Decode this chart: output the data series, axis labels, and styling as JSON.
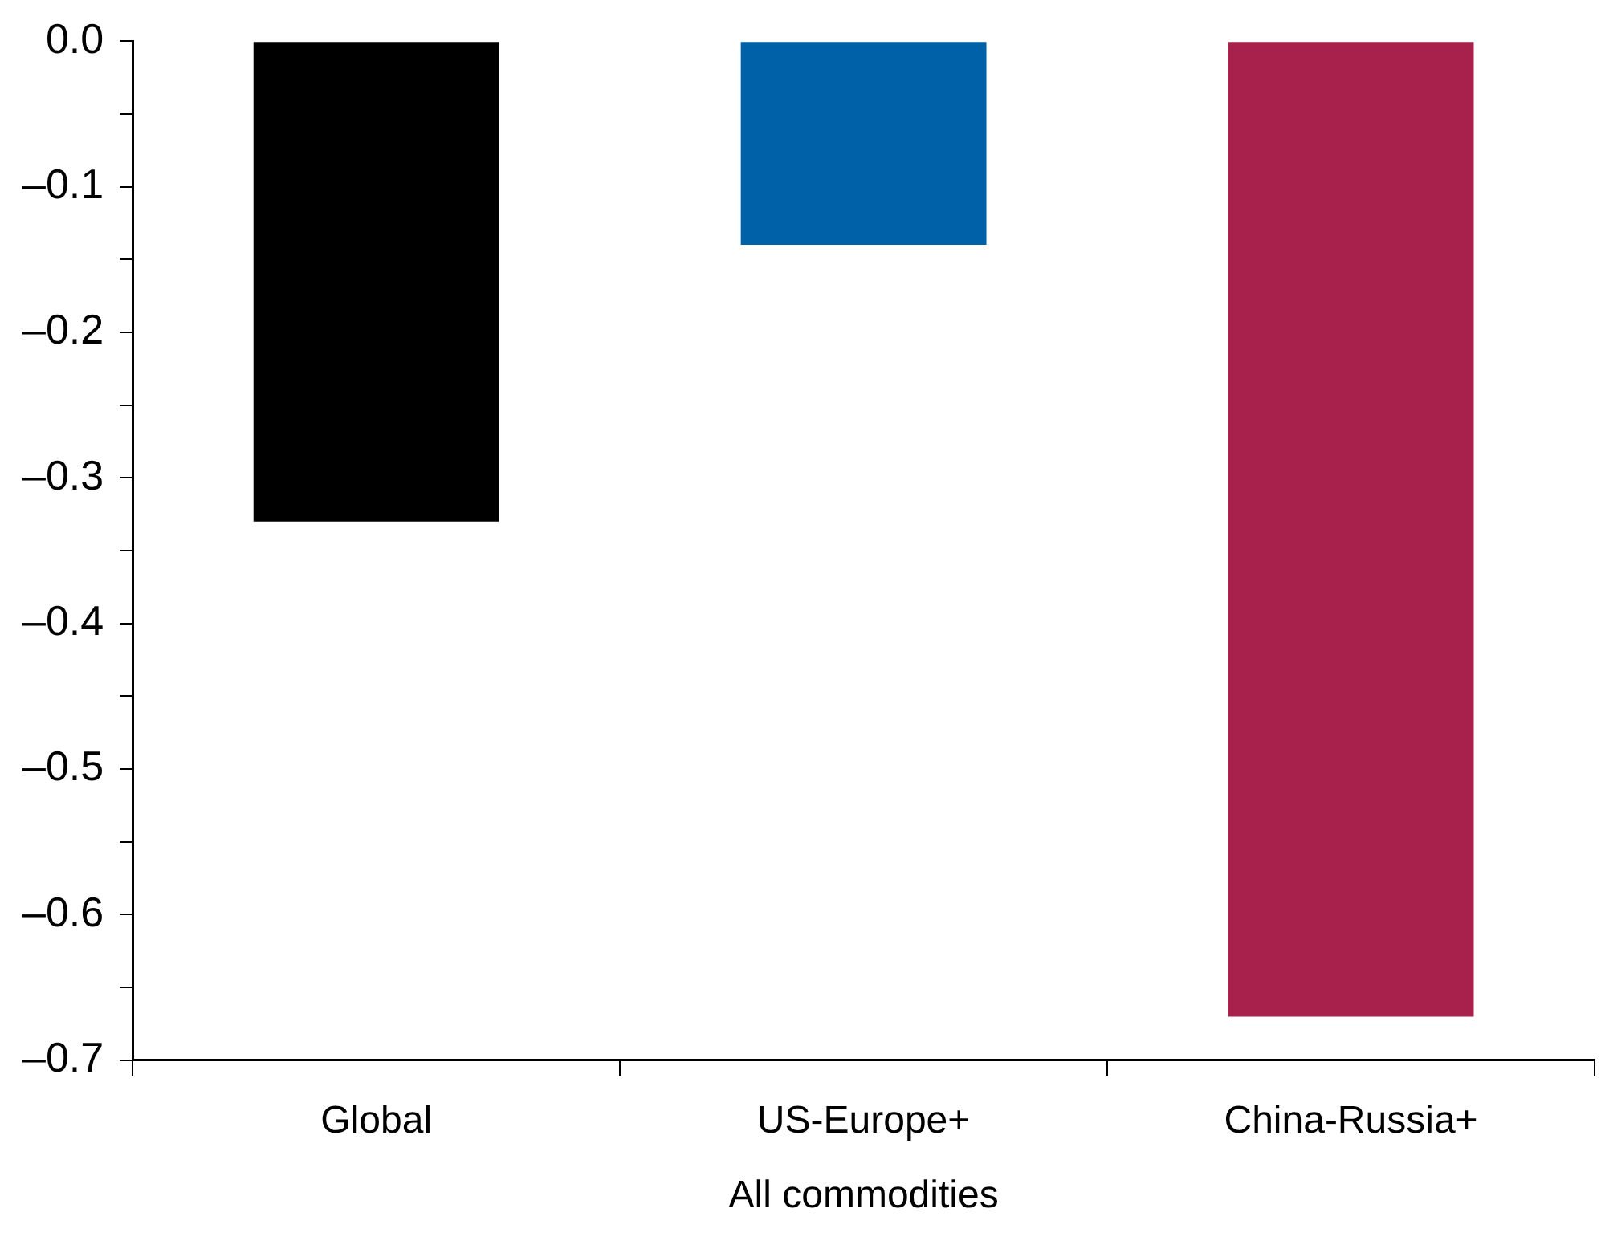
{
  "chart_data": {
    "type": "bar",
    "xlabel": "All commodities",
    "categories": [
      "Global",
      "US-Europe+",
      "China-Russia+"
    ],
    "values": [
      -0.33,
      -0.14,
      -0.67
    ],
    "colors": [
      "#000000",
      "#0060a8",
      "#a8204c"
    ],
    "ylim": [
      -0.7,
      0
    ],
    "yticks": [
      {
        "value": 0,
        "label": "0.0"
      },
      {
        "value": -0.05,
        "label": null
      },
      {
        "value": -0.1,
        "label": "–0.1"
      },
      {
        "value": -0.15,
        "label": null
      },
      {
        "value": -0.2,
        "label": "–0.2"
      },
      {
        "value": -0.25,
        "label": null
      },
      {
        "value": -0.3,
        "label": "–0.3"
      },
      {
        "value": -0.35,
        "label": null
      },
      {
        "value": -0.4,
        "label": "–0.4"
      },
      {
        "value": -0.45,
        "label": null
      },
      {
        "value": -0.5,
        "label": "–0.5"
      },
      {
        "value": -0.55,
        "label": null
      },
      {
        "value": -0.6,
        "label": "–0.6"
      },
      {
        "value": -0.65,
        "label": null
      },
      {
        "value": -0.7,
        "label": "–0.7"
      }
    ],
    "grid": false,
    "legend": false
  }
}
